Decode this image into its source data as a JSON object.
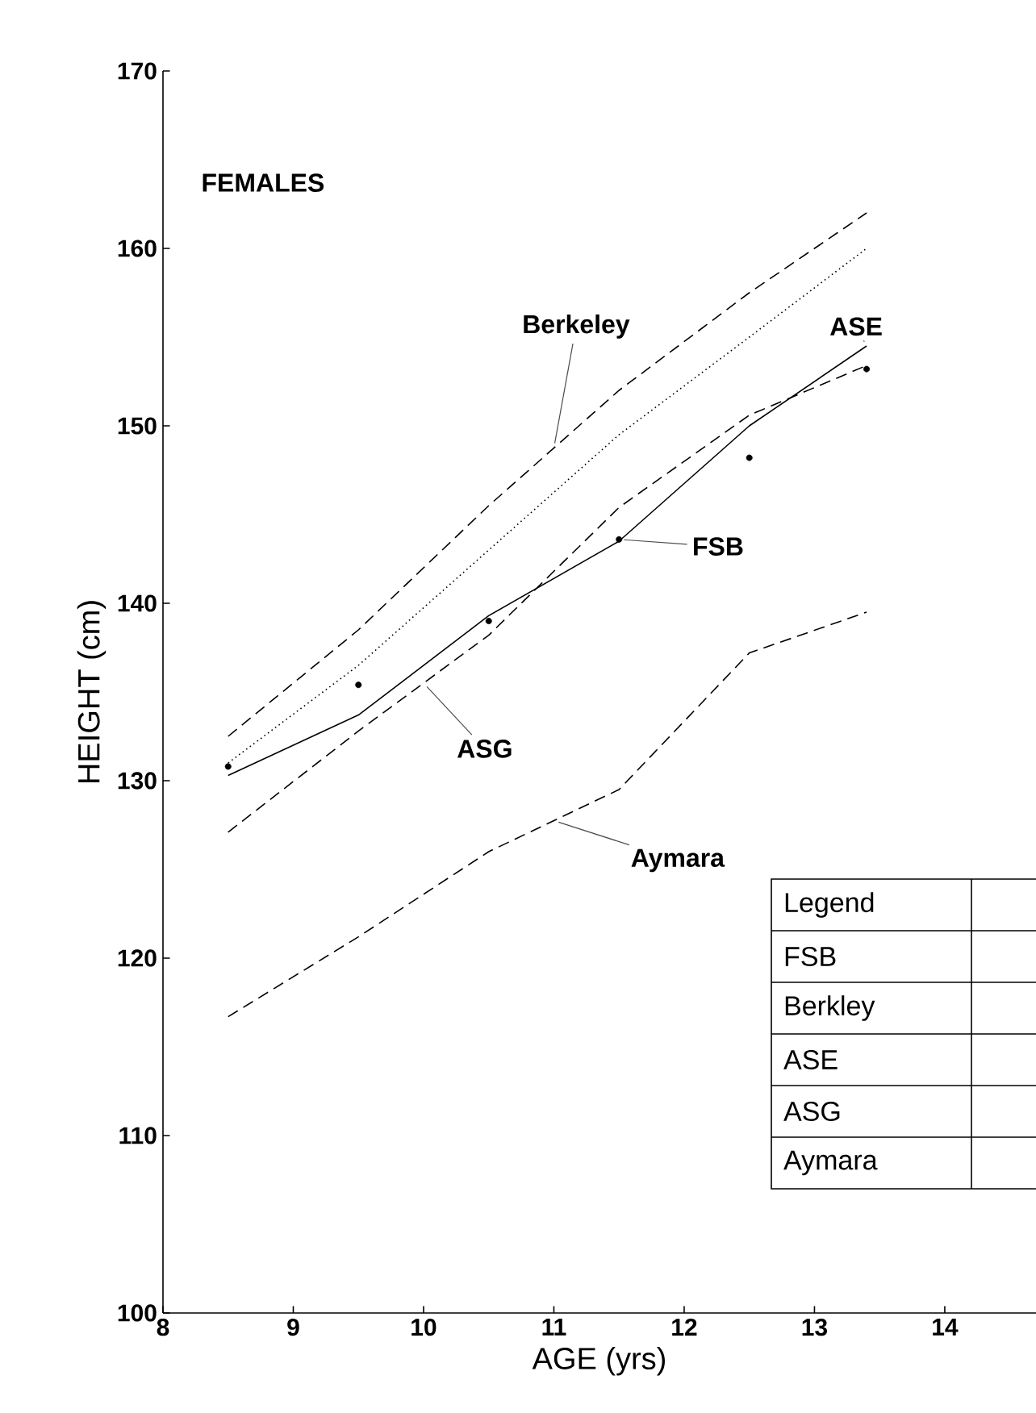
{
  "chart_data": {
    "type": "line",
    "title": "FEMALES",
    "xlabel": "AGE (yrs)",
    "ylabel": "HEIGHT (cm)",
    "xlim": [
      8,
      14.7
    ],
    "ylim": [
      100,
      170
    ],
    "xticks": [
      8,
      9,
      10,
      11,
      12,
      13,
      14
    ],
    "yticks": [
      100,
      110,
      120,
      130,
      140,
      150,
      160,
      170
    ],
    "x": [
      8.5,
      9.5,
      10.5,
      11.5,
      12.5,
      13.4
    ],
    "series": [
      {
        "color": "#000000",
        "line_style": "dashed",
        "values": [
          132.5,
          138.5,
          145.5,
          152,
          157.5,
          162
        ]
      },
      {
        "color": "#000000",
        "line_style": "dotted",
        "values": [
          131,
          136.5,
          143,
          149.5,
          155,
          160
        ]
      },
      {
        "color": "#000000",
        "line_style": "solid",
        "values": [
          130.3,
          133.7,
          139.3,
          143.5,
          150,
          154.5
        ]
      },
      {
        "color": "#000000",
        "line_style": "dashed",
        "values": [
          127.1,
          132.8,
          138.2,
          145.4,
          150.6,
          153.4
        ]
      },
      {
        "color": "#000000",
        "line_style": "dashed",
        "values": [
          116.7,
          121.2,
          126,
          129.5,
          137.2,
          139.5
        ]
      },
      {
        "type": "scatter",
        "color": "#000000",
        "values": [
          130.8,
          135.4,
          139,
          143.6,
          148.2,
          153.2
        ]
      }
    ],
    "annotations": [
      {
        "text": "Berkeley",
        "x": 11,
        "y": 148.75
      },
      {
        "text": "ASE",
        "x": 13.4,
        "y": 154.5
      },
      {
        "text": "FSB",
        "x": 11.5,
        "y": 143.6
      },
      {
        "text": "ASG",
        "x": 10,
        "y": 135.5
      },
      {
        "text": "Aymara",
        "x": 11,
        "y": 127.75
      },
      "Legend",
      "FSB",
      "Berkley",
      "ASE",
      "ASG",
      "Aymara"
    ],
    "grid": false
  }
}
